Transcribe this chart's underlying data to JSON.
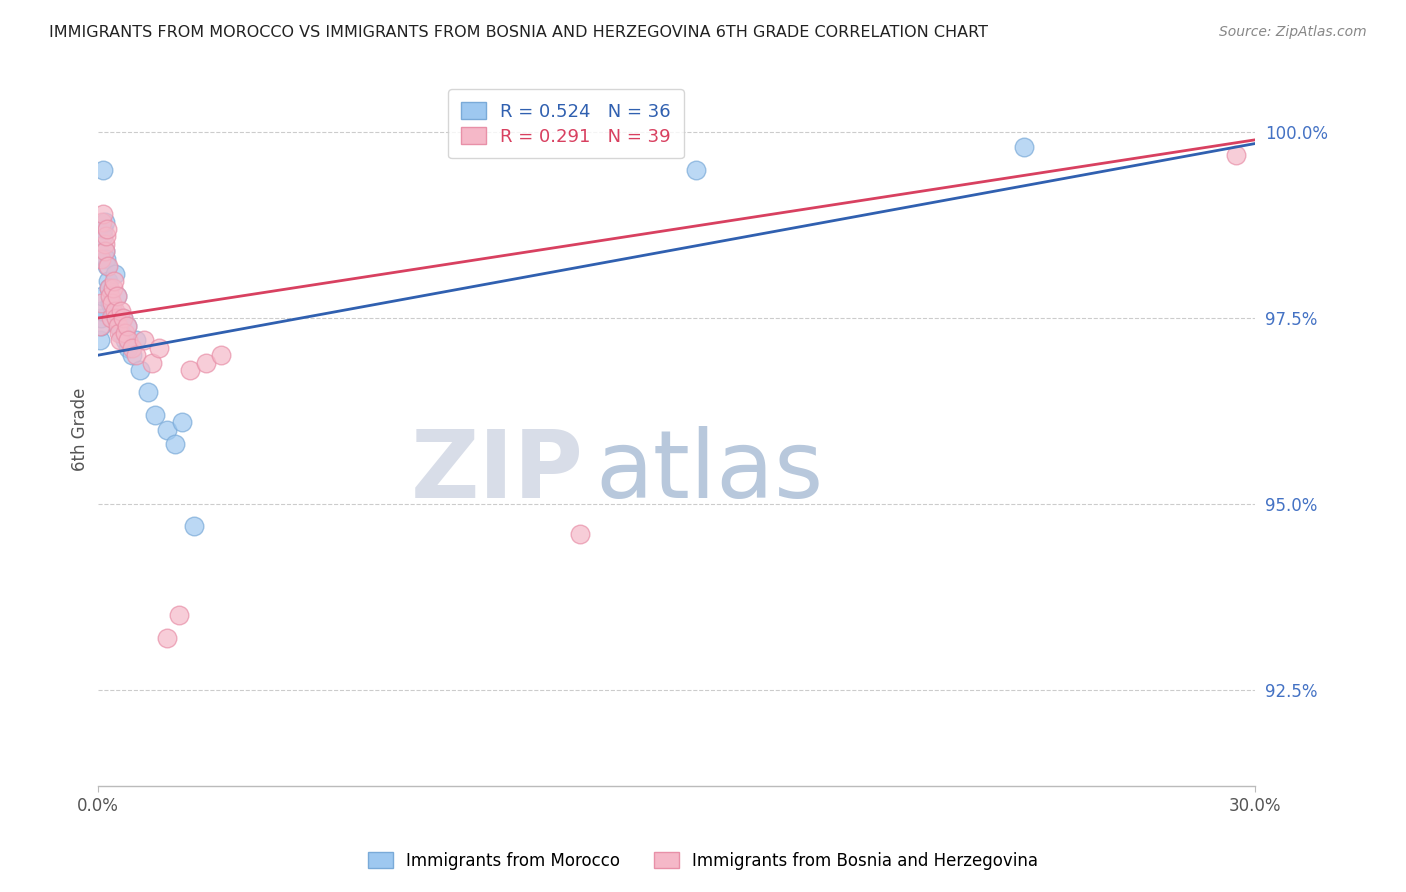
{
  "title": "IMMIGRANTS FROM MOROCCO VS IMMIGRANTS FROM BOSNIA AND HERZEGOVINA 6TH GRADE CORRELATION CHART",
  "source": "Source: ZipAtlas.com",
  "ylabel": "6th Grade",
  "ylabel_right_values": [
    100.0,
    97.5,
    95.0,
    92.5
  ],
  "xlim": [
    0.0,
    30.0
  ],
  "ylim": [
    91.2,
    100.8
  ],
  "blue_R": 0.524,
  "blue_N": 36,
  "pink_R": 0.291,
  "pink_N": 39,
  "blue_label": "Immigrants from Morocco",
  "pink_label": "Immigrants from Bosnia and Herzegovina",
  "blue_color": "#9EC8F0",
  "pink_color": "#F5B8C8",
  "blue_edge_color": "#7AAAD8",
  "pink_edge_color": "#E890A8",
  "blue_line_color": "#3060B0",
  "pink_line_color": "#D84060",
  "title_color": "#222222",
  "source_color": "#888888",
  "grid_color": "#CCCCCC",
  "right_axis_color": "#4472C4",
  "background_color": "#FFFFFF",
  "blue_x": [
    0.05,
    0.08,
    0.1,
    0.1,
    0.12,
    0.13,
    0.15,
    0.15,
    0.18,
    0.2,
    0.22,
    0.25,
    0.28,
    0.3,
    0.32,
    0.38,
    0.4,
    0.45,
    0.5,
    0.55,
    0.6,
    0.65,
    0.7,
    0.75,
    0.8,
    0.9,
    1.0,
    1.1,
    1.3,
    1.5,
    1.8,
    2.0,
    2.2,
    2.5,
    15.5,
    24.0
  ],
  "blue_y": [
    97.2,
    97.4,
    97.5,
    97.6,
    97.8,
    98.6,
    98.7,
    99.5,
    98.8,
    98.4,
    98.3,
    98.2,
    98.0,
    97.9,
    97.7,
    97.5,
    97.6,
    98.1,
    97.8,
    97.4,
    97.3,
    97.5,
    97.2,
    97.4,
    97.1,
    97.0,
    97.2,
    96.8,
    96.5,
    96.2,
    96.0,
    95.8,
    96.1,
    94.7,
    99.5,
    99.8
  ],
  "pink_x": [
    0.05,
    0.08,
    0.1,
    0.12,
    0.15,
    0.18,
    0.2,
    0.22,
    0.25,
    0.28,
    0.3,
    0.32,
    0.35,
    0.38,
    0.4,
    0.42,
    0.45,
    0.48,
    0.5,
    0.52,
    0.55,
    0.58,
    0.6,
    0.65,
    0.7,
    0.75,
    0.8,
    0.9,
    1.0,
    1.2,
    1.4,
    1.6,
    1.8,
    2.1,
    2.4,
    2.8,
    3.2,
    12.5,
    29.5
  ],
  "pink_y": [
    97.4,
    97.7,
    98.3,
    98.8,
    98.9,
    98.5,
    98.4,
    98.6,
    98.7,
    98.2,
    97.9,
    97.8,
    97.5,
    97.7,
    97.9,
    98.0,
    97.6,
    97.5,
    97.8,
    97.4,
    97.3,
    97.2,
    97.6,
    97.5,
    97.3,
    97.4,
    97.2,
    97.1,
    97.0,
    97.2,
    96.9,
    97.1,
    93.2,
    93.5,
    96.8,
    96.9,
    97.0,
    94.6,
    99.7
  ],
  "blue_line_x": [
    0.0,
    30.0
  ],
  "blue_line_y": [
    97.0,
    99.85
  ],
  "pink_line_x": [
    0.0,
    30.0
  ],
  "pink_line_y": [
    97.5,
    99.9
  ]
}
